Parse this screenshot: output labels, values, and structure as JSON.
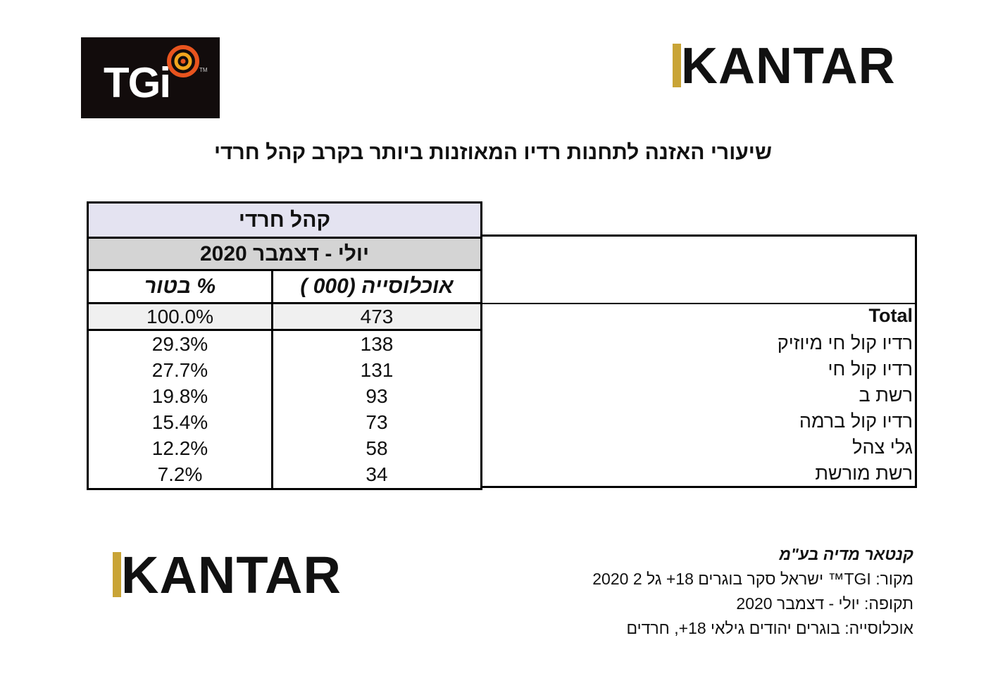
{
  "logos": {
    "tgi_text": "TGi",
    "tgi_tm": "TM",
    "kantar_text": "KANTAR",
    "target_icon": "target-icon"
  },
  "title": "שיעורי האזנה לתחנות רדיו המאוזנות ביותר בקרב קהל חרדי",
  "table": {
    "audience_header": "קהל חרדי",
    "period_header": "יולי - דצמבר 2020",
    "col_population": "אוכלוסייה (000 )",
    "col_percent": "% בטור",
    "colors": {
      "audience_bg": "#e4e3f1",
      "period_bg": "#d4d4d4",
      "total_bg": "#f0f0f0"
    },
    "rows": [
      {
        "label": "Total",
        "population": "473",
        "percent": "100.0%"
      },
      {
        "label": "רדיו קול חי מיוזיק",
        "population": "138",
        "percent": "29.3%"
      },
      {
        "label": "רדיו קול חי",
        "population": "131",
        "percent": "27.7%"
      },
      {
        "label": "רשת ב",
        "population": "93",
        "percent": "19.8%"
      },
      {
        "label": "רדיו קול ברמה",
        "population": "73",
        "percent": "15.4%"
      },
      {
        "label": "גלי צהל",
        "population": "58",
        "percent": "12.2%"
      },
      {
        "label": "רשת מורשת",
        "population": "34",
        "percent": "7.2%"
      }
    ]
  },
  "footer": {
    "company": "קנטאר מדיה בע\"מ",
    "source": "מקור: TGI™ ישראל סקר בוגרים 18+ גל 2 2020",
    "period": "תקופה: יולי - דצמבר 2020",
    "population": "אוכלוסייה: בוגרים יהודים גילאי 18+, חרדים"
  }
}
